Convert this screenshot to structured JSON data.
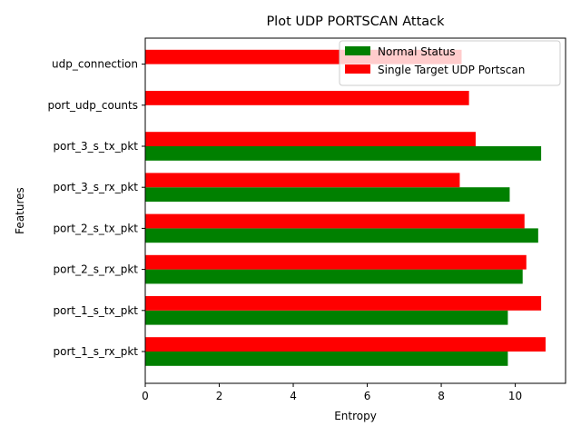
{
  "chart_data": {
    "type": "bar",
    "orientation": "horizontal",
    "title": "Plot UDP PORTSCAN Attack",
    "xlabel": "Entropy",
    "ylabel": "Features",
    "categories": [
      "port_1_s_rx_pkt",
      "port_1_s_tx_pkt",
      "port_2_s_rx_pkt",
      "port_2_s_tx_pkt",
      "port_3_s_rx_pkt",
      "port_3_s_tx_pkt",
      "port_udp_counts",
      "udp_connection"
    ],
    "series": [
      {
        "name": "Normal Status",
        "color": "#008000",
        "values": [
          9.8,
          9.8,
          10.2,
          10.62,
          9.85,
          10.7,
          0,
          0
        ]
      },
      {
        "name": "Single Target UDP Portscan",
        "color": "#ff0000",
        "values": [
          10.82,
          10.7,
          10.3,
          10.25,
          8.5,
          8.93,
          8.75,
          8.55
        ]
      }
    ],
    "xlim": [
      0,
      11.36
    ],
    "xticks": [
      0,
      2,
      4,
      6,
      8,
      10
    ],
    "grid": false,
    "legend_position": "top-right"
  }
}
